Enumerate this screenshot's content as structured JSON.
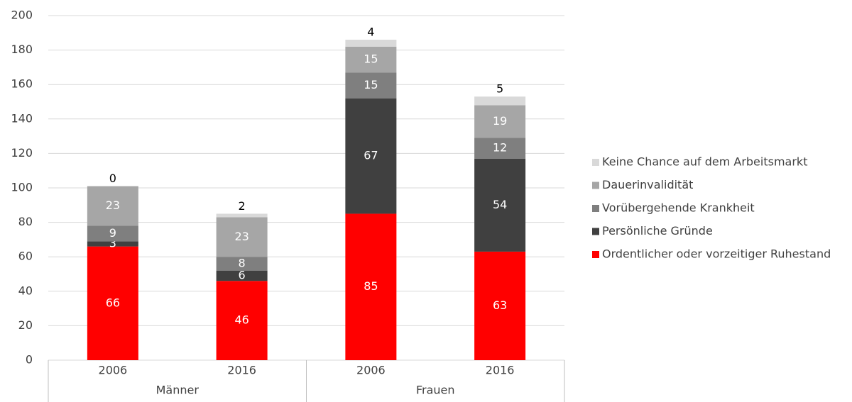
{
  "chart_data": {
    "type": "stacked_bar",
    "categories": [
      "2006",
      "2016",
      "2006",
      "2016"
    ],
    "groups": [
      "Männer",
      "Frauen"
    ],
    "series": [
      {
        "name": "Ordentlicher oder vorzeitiger Ruhestand",
        "color": "#ff0000",
        "label_color": "#ffffff",
        "values": [
          66,
          46,
          85,
          63
        ]
      },
      {
        "name": "Persönliche Gründe",
        "color": "#404040",
        "label_color": "#ffffff",
        "values": [
          3,
          6,
          67,
          54
        ]
      },
      {
        "name": "Vorübergehende Krankheit",
        "color": "#7f7f7f",
        "label_color": "#ffffff",
        "values": [
          9,
          8,
          15,
          12
        ]
      },
      {
        "name": "Dauerinvalidität",
        "color": "#a6a6a6",
        "label_color": "#ffffff",
        "values": [
          23,
          23,
          15,
          19
        ]
      },
      {
        "name": "Keine Chance auf dem Arbeitsmarkt",
        "color": "#d9d9d9",
        "label_color": "#000000",
        "values": [
          0,
          2,
          4,
          5
        ]
      }
    ],
    "ylim": [
      0,
      200
    ],
    "yticks": [
      0,
      20,
      40,
      60,
      80,
      100,
      120,
      140,
      160,
      180,
      200
    ],
    "grid": true,
    "legend": "right"
  }
}
